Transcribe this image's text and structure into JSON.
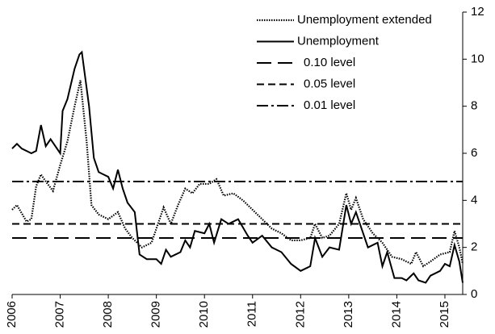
{
  "chart_data": {
    "type": "line",
    "xlim": [
      2006,
      2015.37
    ],
    "xticks": [
      2006,
      2007,
      2008,
      2009,
      2010,
      2011,
      2012,
      2013,
      2014,
      2015
    ],
    "ylim": [
      0,
      12
    ],
    "yticks": [
      0,
      2,
      4,
      6,
      8,
      10,
      12
    ],
    "y_axis_side": "right",
    "series": [
      {
        "name": "Unemployment extended",
        "color": "#000000",
        "dash": "dotted",
        "x": [
          2006.0,
          2006.1,
          2006.3,
          2006.4,
          2006.5,
          2006.6,
          2006.7,
          2006.85,
          2007.0,
          2007.15,
          2007.3,
          2007.42,
          2007.55,
          2007.65,
          2007.8,
          2008.0,
          2008.2,
          2008.35,
          2008.5,
          2008.7,
          2008.9,
          2009.05,
          2009.15,
          2009.3,
          2009.45,
          2009.6,
          2009.75,
          2009.9,
          2010.1,
          2010.25,
          2010.4,
          2010.6,
          2010.8,
          2011.0,
          2011.2,
          2011.4,
          2011.6,
          2011.8,
          2012.0,
          2012.2,
          2012.3,
          2012.45,
          2012.6,
          2012.8,
          2012.95,
          2013.05,
          2013.15,
          2013.3,
          2013.5,
          2013.7,
          2013.9,
          2014.1,
          2014.3,
          2014.4,
          2014.55,
          2014.7,
          2014.9,
          2015.1,
          2015.2,
          2015.3,
          2015.37
        ],
        "values": [
          3.6,
          3.8,
          3.1,
          3.2,
          4.6,
          5.1,
          4.8,
          4.4,
          5.5,
          6.5,
          8.0,
          9.1,
          6.5,
          3.8,
          3.4,
          3.2,
          3.5,
          2.8,
          2.4,
          2.0,
          2.2,
          3.1,
          3.7,
          3.0,
          3.8,
          4.5,
          4.3,
          4.7,
          4.7,
          4.9,
          4.2,
          4.3,
          4.0,
          3.6,
          3.2,
          2.8,
          2.6,
          2.3,
          2.3,
          2.4,
          3.0,
          2.4,
          2.5,
          3.0,
          4.3,
          3.6,
          4.1,
          3.2,
          2.6,
          2.2,
          1.6,
          1.5,
          1.3,
          1.8,
          1.2,
          1.4,
          1.7,
          1.8,
          2.7,
          2.0,
          1.3
        ]
      },
      {
        "name": "Unemployment",
        "color": "#000000",
        "dash": "solid",
        "x": [
          2006.0,
          2006.1,
          2006.2,
          2006.4,
          2006.5,
          2006.6,
          2006.7,
          2006.8,
          2007.0,
          2007.05,
          2007.15,
          2007.3,
          2007.4,
          2007.45,
          2007.6,
          2007.7,
          2007.8,
          2008.0,
          2008.1,
          2008.2,
          2008.3,
          2008.4,
          2008.55,
          2008.65,
          2008.8,
          2009.0,
          2009.1,
          2009.2,
          2009.3,
          2009.5,
          2009.6,
          2009.7,
          2009.8,
          2010.0,
          2010.1,
          2010.2,
          2010.35,
          2010.5,
          2010.7,
          2010.9,
          2011.0,
          2011.2,
          2011.4,
          2011.6,
          2011.8,
          2012.0,
          2012.2,
          2012.3,
          2012.45,
          2012.6,
          2012.8,
          2012.95,
          2013.05,
          2013.15,
          2013.3,
          2013.4,
          2013.6,
          2013.7,
          2013.8,
          2013.95,
          2014.1,
          2014.2,
          2014.35,
          2014.45,
          2014.6,
          2014.7,
          2014.9,
          2015.0,
          2015.1,
          2015.2,
          2015.3,
          2015.37
        ],
        "values": [
          6.2,
          6.4,
          6.2,
          6.0,
          6.1,
          7.2,
          6.3,
          6.6,
          6.0,
          7.8,
          8.3,
          9.6,
          10.2,
          10.3,
          8.0,
          5.8,
          5.2,
          5.0,
          4.5,
          5.3,
          4.5,
          3.9,
          3.5,
          1.7,
          1.5,
          1.5,
          1.3,
          1.9,
          1.6,
          1.8,
          2.3,
          2.0,
          2.7,
          2.6,
          3.0,
          2.2,
          3.2,
          3.0,
          3.2,
          2.5,
          2.2,
          2.5,
          2.0,
          1.8,
          1.3,
          1.0,
          1.2,
          2.4,
          1.6,
          2.0,
          1.9,
          3.8,
          3.0,
          3.5,
          2.6,
          2.0,
          2.2,
          1.2,
          1.8,
          0.7,
          0.7,
          0.6,
          0.9,
          0.6,
          0.5,
          0.8,
          1.0,
          1.3,
          1.2,
          2.1,
          1.4,
          0.5
        ]
      }
    ],
    "reference_lines": [
      {
        "name": "0.10 level",
        "value": 2.4,
        "dash": "long-dash"
      },
      {
        "name": "0.05 level",
        "value": 3.0,
        "dash": "short-dash"
      },
      {
        "name": "0.01 level",
        "value": 4.8,
        "dash": "dash-dot"
      }
    ]
  }
}
